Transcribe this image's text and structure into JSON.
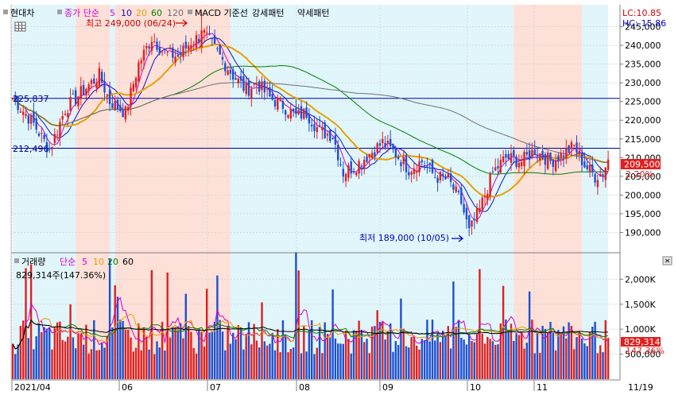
{
  "legend_price": {
    "stock": "현대차",
    "ma_prefix": "종가 단순",
    "ma_periods": [
      "5",
      "10",
      "20",
      "60",
      "120"
    ],
    "ma_colors": [
      "#d000d0",
      "#1010d0",
      "#e8a000",
      "#008000",
      "#707070"
    ],
    "macd": "MACD 기준선",
    "bull": "강세패턴",
    "bear": "약세패턴"
  },
  "legend_volume": {
    "title": "거래량",
    "ma_prefix": "단순",
    "ma_periods": [
      "5",
      "10",
      "20",
      "60"
    ],
    "ma_colors": [
      "#d000d0",
      "#e8a000",
      "#008000",
      "#000000"
    ],
    "current": "829,314주(147.36%)"
  },
  "top_right": {
    "lc": "LC:10.85",
    "hc": "HC:-15.86"
  },
  "annotations": {
    "high": "최고 249,000 (06/24)",
    "low": "최저 189,000 (10/05)",
    "line1": "225,837",
    "line2": "212,496"
  },
  "price_badge": {
    "value": "209,500",
    "pct": "2.20%"
  },
  "volume_badge": {
    "value": "829,314",
    "pct": "147.36%"
  },
  "chart_data": {
    "type": "candlestick",
    "x_ticks": [
      "2021/04",
      "06",
      "07",
      "08",
      "09",
      "10",
      "11",
      "11/19"
    ],
    "y_ticks": [
      "190,000",
      "195,000",
      "200,000",
      "205,000",
      "210,000",
      "215,000",
      "220,000",
      "225,000",
      "230,000",
      "235,000",
      "240,000",
      "245,000"
    ],
    "y_range": [
      185000,
      250000
    ],
    "volume_ticks": [
      "500,000",
      "1,000K",
      "1,500K",
      "2,000K"
    ],
    "volume_range": [
      0,
      2500000
    ],
    "horizontal_lines": [
      225837,
      212496
    ],
    "colors": {
      "up": "#e02020",
      "down": "#1e50d0",
      "bull_zone": "#fde0d8",
      "bear_zone": "#e0f6fb"
    },
    "anchors": [
      [
        0,
        226000
      ],
      [
        8,
        219000
      ],
      [
        14,
        212000
      ],
      [
        20,
        223000
      ],
      [
        27,
        228000
      ],
      [
        33,
        232000
      ],
      [
        37,
        225000
      ],
      [
        43,
        222000
      ],
      [
        48,
        235000
      ],
      [
        53,
        242000
      ],
      [
        58,
        238000
      ],
      [
        63,
        237000
      ],
      [
        68,
        241000
      ],
      [
        73,
        243000
      ],
      [
        78,
        238000
      ],
      [
        84,
        232000
      ],
      [
        89,
        228000
      ],
      [
        93,
        230000
      ],
      [
        98,
        226000
      ],
      [
        103,
        224000
      ],
      [
        108,
        221000
      ],
      [
        112,
        222000
      ],
      [
        117,
        217000
      ],
      [
        122,
        216000
      ],
      [
        126,
        206000
      ],
      [
        131,
        208000
      ],
      [
        136,
        211000
      ],
      [
        141,
        214000
      ],
      [
        146,
        211000
      ],
      [
        151,
        207000
      ],
      [
        156,
        209000
      ],
      [
        161,
        205000
      ],
      [
        166,
        204000
      ],
      [
        171,
        198000
      ],
      [
        174,
        190000
      ],
      [
        178,
        196000
      ],
      [
        183,
        206000
      ],
      [
        188,
        210000
      ],
      [
        194,
        209000
      ],
      [
        199,
        212000
      ],
      [
        205,
        209000
      ],
      [
        210,
        211000
      ],
      [
        214,
        213000
      ],
      [
        218,
        208000
      ],
      [
        222,
        205000
      ],
      [
        225,
        206000
      ],
      [
        227,
        209500
      ]
    ]
  }
}
